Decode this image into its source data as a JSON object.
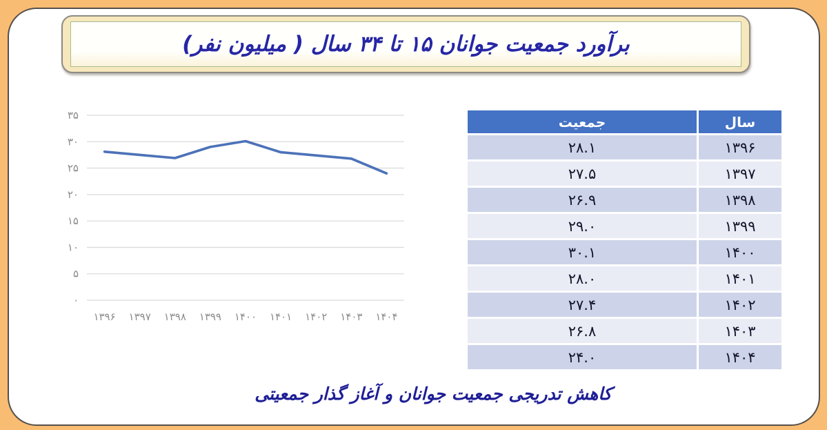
{
  "page": {
    "title": "برآورد جمعیت جوانان ۱۵ تا ۳۴ سال ( میلیون نفر)",
    "caption": "کاهش تدریجی جمعیت جوانان و آغاز گذار جمعیتی",
    "background_color": "#F9BC73",
    "card_color": "#FFFFFF",
    "title_text_color": "#2626A5",
    "title_box_fill": "#F7E7BC"
  },
  "chart_data": {
    "type": "line",
    "title": "",
    "xlabel": "",
    "ylabel": "",
    "categories": [
      "۱۳۹۶",
      "۱۳۹۷",
      "۱۳۹۸",
      "۱۳۹۹",
      "۱۴۰۰",
      "۱۴۰۱",
      "۱۴۰۲",
      "۱۴۰۳",
      "۱۴۰۴"
    ],
    "categories_numeric": [
      1396,
      1397,
      1398,
      1399,
      1400,
      1401,
      1402,
      1403,
      1404
    ],
    "values": [
      28.1,
      27.5,
      26.9,
      29.0,
      30.1,
      28.0,
      27.4,
      26.8,
      24.0
    ],
    "ylim": [
      0,
      35
    ],
    "y_tick_step": 5,
    "y_tick_labels": [
      "۰",
      "۵",
      "۱۰",
      "۱۵",
      "۲۰",
      "۲۵",
      "۳۰",
      "۳۵"
    ],
    "grid": true,
    "legend": "none",
    "line_color": "#4C72B8",
    "grid_color": "#DBDBDB",
    "tick_label_color": "#8C8C8C"
  },
  "table": {
    "header": {
      "population": "جمعیت",
      "year": "سال"
    },
    "header_bg": "#4472C4",
    "row_bg_odd": "#CDD4E9",
    "row_bg_even": "#E9EBF5",
    "rows": [
      {
        "population": "۲۸.۱",
        "year": "۱۳۹۶"
      },
      {
        "population": "۲۷.۵",
        "year": "۱۳۹۷"
      },
      {
        "population": "۲۶.۹",
        "year": "۱۳۹۸"
      },
      {
        "population": "۲۹.۰",
        "year": "۱۳۹۹"
      },
      {
        "population": "۳۰.۱",
        "year": "۱۴۰۰"
      },
      {
        "population": "۲۸.۰",
        "year": "۱۴۰۱"
      },
      {
        "population": "۲۷.۴",
        "year": "۱۴۰۲"
      },
      {
        "population": "۲۶.۸",
        "year": "۱۴۰۳"
      },
      {
        "population": "۲۴.۰",
        "year": "۱۴۰۴"
      }
    ]
  }
}
